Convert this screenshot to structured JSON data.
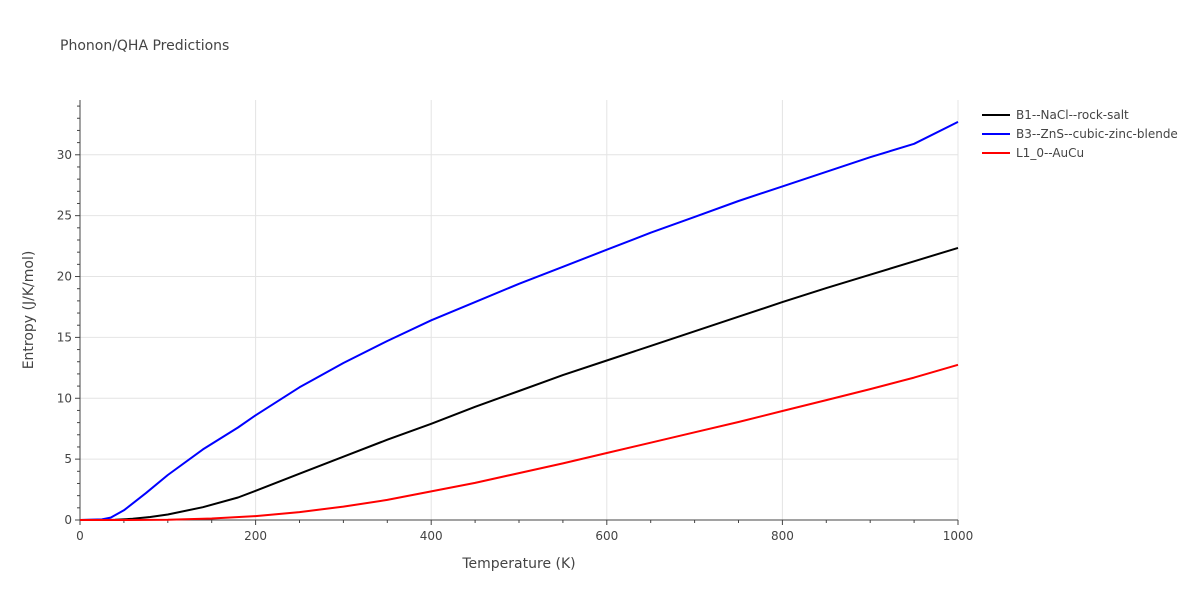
{
  "chart_data": {
    "type": "line",
    "title": "Phonon/QHA Predictions",
    "xlabel": "Temperature (K)",
    "ylabel": "Entropy (J/K/mol)",
    "xlim": [
      0,
      1000
    ],
    "ylim": [
      0,
      34.5
    ],
    "x_ticks": [
      0,
      200,
      400,
      600,
      800,
      1000
    ],
    "y_ticks": [
      0,
      5,
      10,
      15,
      20,
      25,
      30
    ],
    "grid": true,
    "legend": "right",
    "series": [
      {
        "name": "B1--NaCl--rock-salt",
        "color": "#000000",
        "x": [
          0,
          40,
          60,
          80,
          100,
          140,
          180,
          200,
          250,
          300,
          350,
          400,
          450,
          500,
          550,
          600,
          650,
          700,
          750,
          800,
          850,
          900,
          950,
          1000
        ],
        "y": [
          0,
          0.02,
          0.1,
          0.25,
          0.45,
          1.05,
          1.85,
          2.4,
          3.8,
          5.2,
          6.6,
          7.9,
          9.3,
          10.6,
          11.9,
          13.1,
          14.3,
          15.5,
          16.7,
          17.9,
          19.05,
          20.15,
          21.25,
          22.35
        ]
      },
      {
        "name": "B3--ZnS--cubic-zinc-blende",
        "color": "#0000ff",
        "x": [
          0,
          25,
          35,
          50,
          75,
          100,
          140,
          180,
          200,
          250,
          300,
          350,
          400,
          450,
          500,
          550,
          600,
          650,
          700,
          750,
          800,
          850,
          900,
          950,
          1000
        ],
        "y": [
          0,
          0.05,
          0.2,
          0.8,
          2.2,
          3.7,
          5.8,
          7.6,
          8.6,
          10.9,
          12.9,
          14.7,
          16.4,
          17.9,
          19.4,
          20.8,
          22.2,
          23.6,
          24.9,
          26.2,
          27.4,
          28.6,
          29.8,
          30.9,
          32.7
        ]
      },
      {
        "name": "L1_0--AuCu",
        "color": "#ff0000",
        "x": [
          0,
          50,
          100,
          150,
          200,
          250,
          300,
          350,
          400,
          450,
          500,
          550,
          600,
          650,
          700,
          750,
          800,
          850,
          900,
          950,
          1000
        ],
        "y": [
          0,
          0,
          0.02,
          0.12,
          0.32,
          0.65,
          1.1,
          1.65,
          2.35,
          3.05,
          3.85,
          4.65,
          5.5,
          6.35,
          7.2,
          8.05,
          8.95,
          9.85,
          10.75,
          11.7,
          12.75
        ]
      }
    ]
  }
}
